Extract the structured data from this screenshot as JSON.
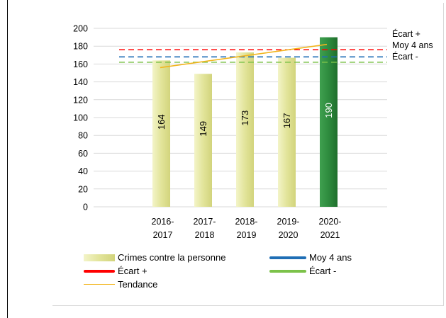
{
  "chart_data": {
    "type": "bar",
    "categories": [
      [
        "2016-",
        "2017"
      ],
      [
        "2017-",
        "2018"
      ],
      [
        "2018-",
        "2019"
      ],
      [
        "2019-",
        "2020"
      ],
      [
        "2020-",
        "2021"
      ]
    ],
    "series": [
      {
        "name": "Crimes contre la personne",
        "values": [
          164,
          149,
          173,
          167,
          190
        ],
        "colors": [
          "#e2e49a",
          "#e2e49a",
          "#e2e49a",
          "#e2e49a",
          "#2e8b3e"
        ]
      }
    ],
    "reference_lines": [
      {
        "name": "Écart +",
        "value": 176,
        "color": "#ff0000"
      },
      {
        "name": "Moy 4 ans",
        "value": 168,
        "color": "#1f6eb5"
      },
      {
        "name": "Écart -",
        "value": 162,
        "color": "#7cc24a"
      }
    ],
    "trend": {
      "name": "Tendance",
      "start": 156,
      "end": 182,
      "color": "#f2b51d"
    },
    "ylim": [
      0,
      200
    ],
    "yticks": [
      0,
      20,
      40,
      60,
      80,
      100,
      120,
      140,
      160,
      180,
      200
    ],
    "right_labels": [
      "Écart +",
      "Moy 4 ans",
      "Écart -"
    ],
    "grid": true,
    "legend": [
      {
        "label": "Crimes contre la personne",
        "kind": "bar",
        "color": "#e2e49a"
      },
      {
        "label": "Moy 4 ans",
        "kind": "line",
        "color": "#1f6eb5"
      },
      {
        "label": "Écart +",
        "kind": "line",
        "color": "#ff0000"
      },
      {
        "label": "Écart -",
        "kind": "line",
        "color": "#7cc24a"
      },
      {
        "label": "Tendance",
        "kind": "thin-line",
        "color": "#f2b51d"
      }
    ]
  }
}
